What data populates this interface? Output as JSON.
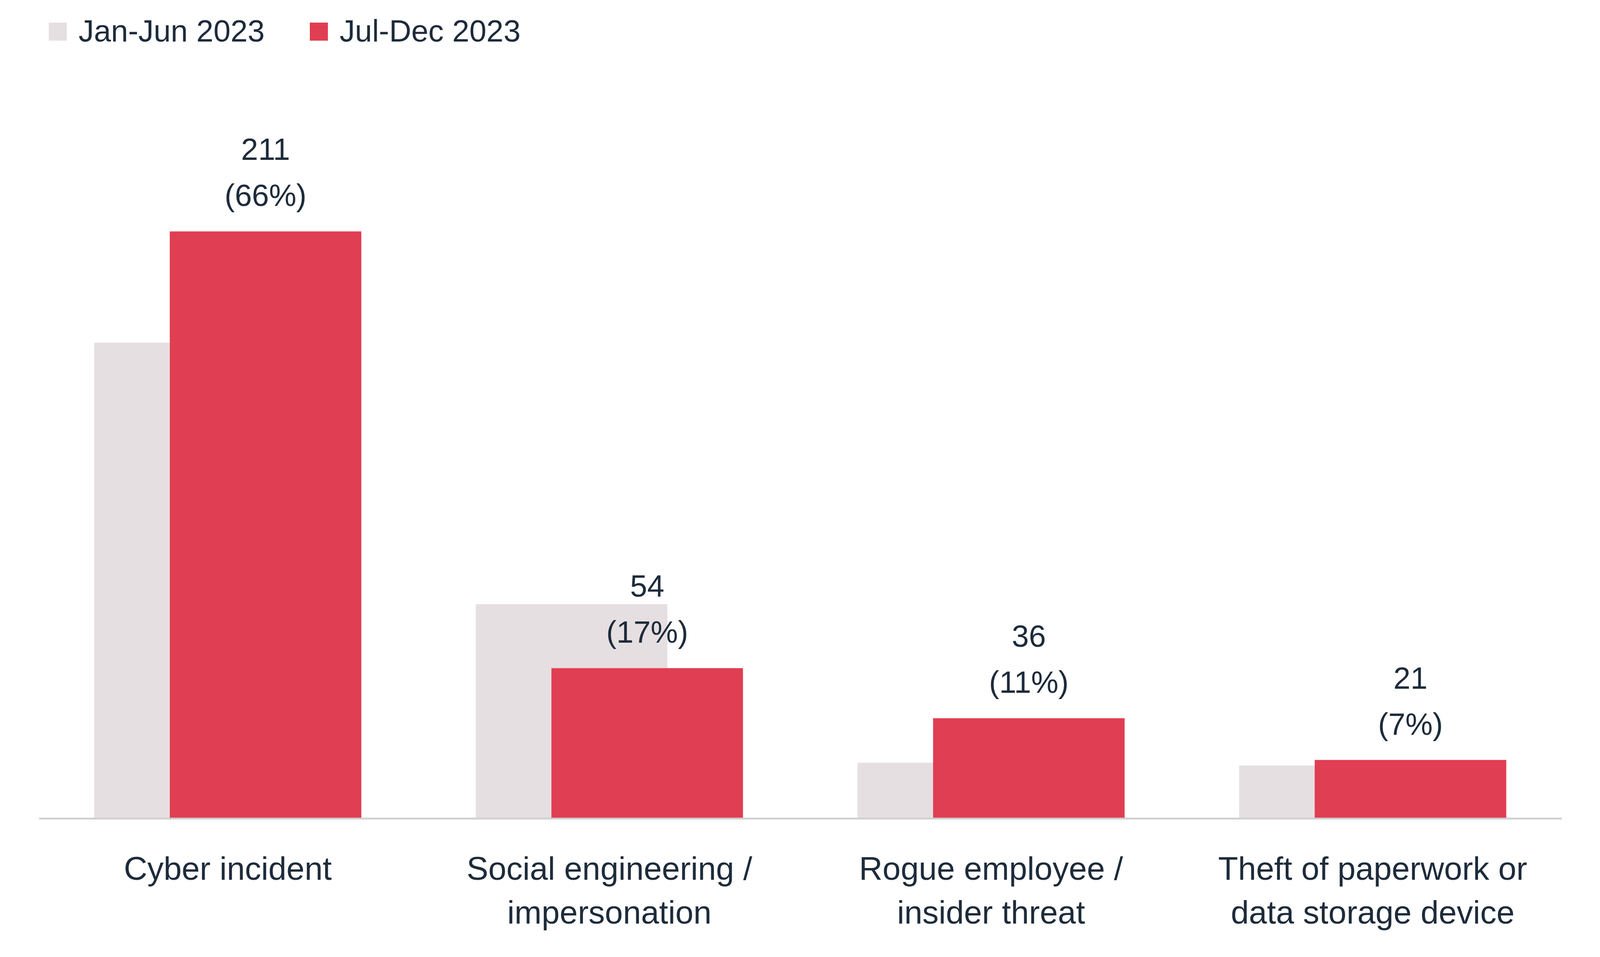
{
  "chart_data": {
    "type": "bar",
    "categories": [
      "Cyber incident",
      "Social engineering /\nimpersonation",
      "Rogue employee /\ninsider threat",
      "Theft of paperwork or\ndata storage device"
    ],
    "series": [
      {
        "name": "Jan-Jun 2023",
        "color": "#e6dfe1",
        "values": [
          171,
          77,
          20,
          19
        ]
      },
      {
        "name": "Jul-Dec 2023",
        "color": "#e03e52",
        "values": [
          211,
          54,
          36,
          21
        ],
        "value_labels": [
          "211\n(66%)",
          "54\n(17%)",
          "36\n(11%)",
          "21\n(7%)"
        ]
      }
    ],
    "ylim": [
      0,
      245
    ],
    "data_labels": true,
    "tick_labels": "x",
    "legend": "top-left"
  }
}
